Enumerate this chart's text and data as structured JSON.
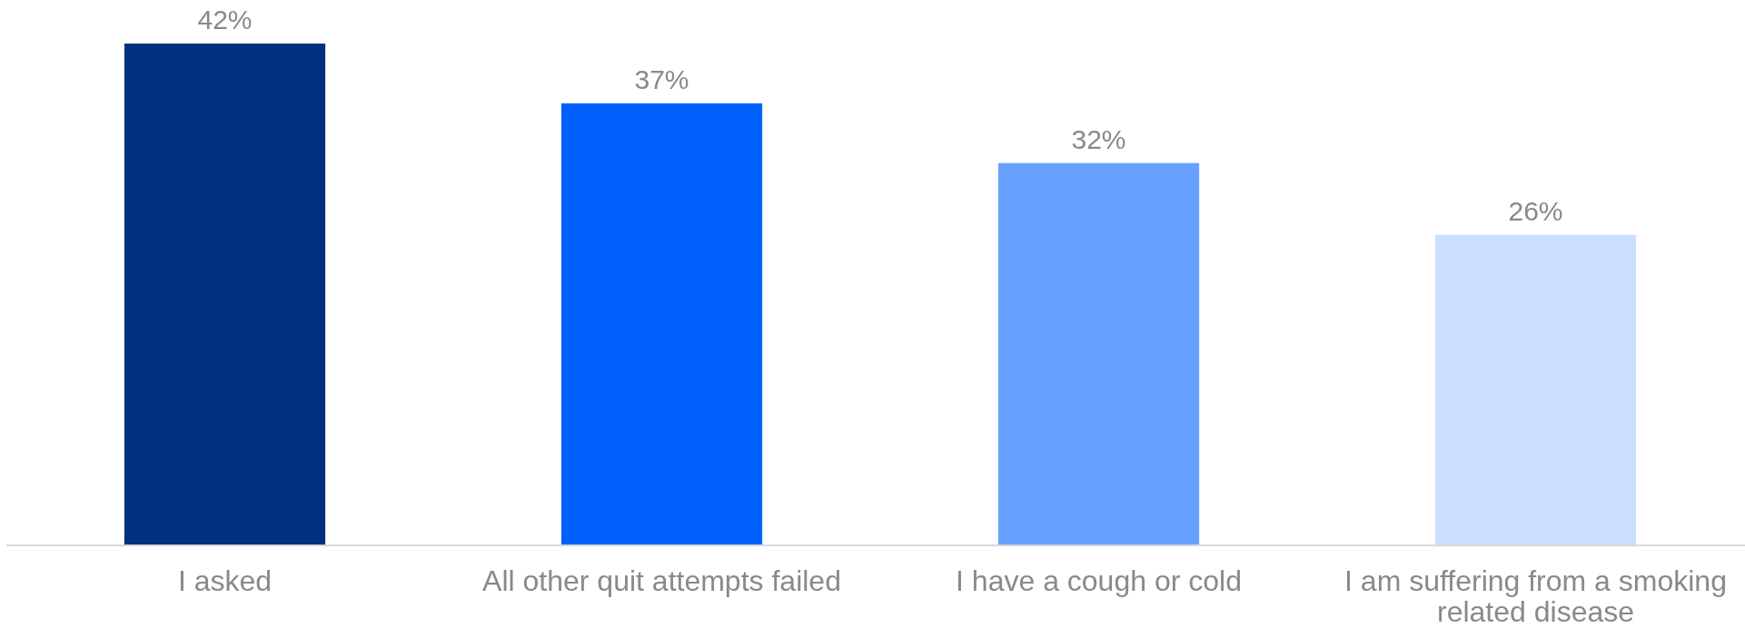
{
  "chart_data": {
    "type": "bar",
    "categories": [
      "I asked",
      "All other quit attempts failed",
      "I have a cough or cold",
      "I am suffering from a smoking related disease"
    ],
    "values": [
      42,
      37,
      32,
      26
    ],
    "colors": [
      "#00307f",
      "#0061ff",
      "#66a1ff",
      "#ccdeff"
    ],
    "value_labels": [
      "42%",
      "37%",
      "32%",
      "26%"
    ]
  }
}
